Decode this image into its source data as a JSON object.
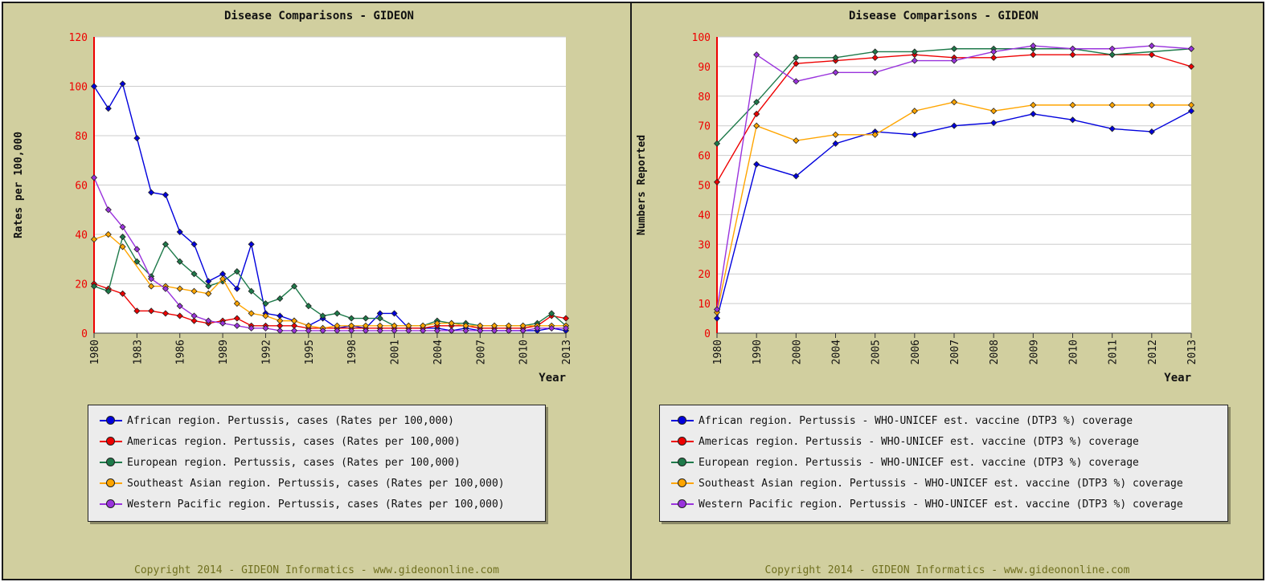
{
  "chart_data": [
    {
      "type": "line",
      "title": "Disease Comparisons - GIDEON",
      "xlabel": "Year",
      "ylabel": "Rates per 100,000",
      "ylim": [
        0,
        120
      ],
      "yticks": [
        0,
        20,
        40,
        60,
        80,
        100,
        120
      ],
      "x": [
        1980,
        1981,
        1982,
        1983,
        1984,
        1985,
        1986,
        1987,
        1988,
        1989,
        1990,
        1991,
        1992,
        1993,
        1994,
        1995,
        1996,
        1997,
        1998,
        1999,
        2000,
        2001,
        2002,
        2003,
        2004,
        2005,
        2006,
        2007,
        2008,
        2009,
        2010,
        2011,
        2012,
        2013
      ],
      "xtick_labels": [
        "1980",
        "1983",
        "1986",
        "1989",
        "1992",
        "1995",
        "1998",
        "2001",
        "2004",
        "2007",
        "2010",
        "2013"
      ],
      "grid": true,
      "legend_position": "bottom",
      "series": [
        {
          "name": "African region. Pertussis, cases (Rates per 100,000)",
          "color": "#0000dd",
          "values": [
            100,
            91,
            101,
            79,
            57,
            56,
            41,
            36,
            21,
            24,
            18,
            36,
            8,
            7,
            5,
            3,
            6,
            2,
            3,
            2,
            8,
            8,
            2,
            2,
            2,
            1,
            2,
            1,
            1,
            1,
            1,
            1,
            2,
            1
          ]
        },
        {
          "name": "Americas region. Pertussis, cases (Rates per 100,000)",
          "color": "#ee0000",
          "values": [
            20,
            18,
            16,
            9,
            9,
            8,
            7,
            5,
            4,
            5,
            6,
            3,
            3,
            3,
            3,
            2,
            2,
            2,
            2,
            2,
            2,
            2,
            2,
            2,
            3,
            3,
            3,
            2,
            2,
            2,
            2,
            3,
            7,
            6
          ]
        },
        {
          "name": "European region. Pertussis, cases (Rates per 100,000)",
          "color": "#1e7a4a",
          "values": [
            19,
            17,
            39,
            29,
            23,
            36,
            29,
            24,
            19,
            21,
            25,
            17,
            12,
            14,
            19,
            11,
            7,
            8,
            6,
            6,
            6,
            3,
            3,
            3,
            5,
            4,
            4,
            3,
            3,
            3,
            3,
            4,
            8,
            3
          ]
        },
        {
          "name": "Southeast Asian region. Pertussis, cases (Rates per 100,000)",
          "color": "#ffa500",
          "values": [
            38,
            40,
            35,
            null,
            19,
            19,
            18,
            17,
            16,
            22,
            12,
            8,
            7,
            5,
            5,
            3,
            2,
            3,
            3,
            3,
            3,
            3,
            3,
            3,
            4,
            4,
            3,
            3,
            3,
            3,
            3,
            3,
            3,
            3
          ]
        },
        {
          "name": "Western Pacific region. Pertussis, cases (Rates per 100,000)",
          "color": "#9a33dd",
          "values": [
            63,
            50,
            43,
            34,
            22,
            18,
            11,
            7,
            5,
            4,
            3,
            2,
            2,
            1,
            1,
            1,
            1,
            1,
            1,
            1,
            1,
            1,
            1,
            1,
            1,
            1,
            1,
            1,
            1,
            1,
            1,
            2,
            2,
            2
          ]
        }
      ]
    },
    {
      "type": "line",
      "title": "Disease Comparisons - GIDEON",
      "xlabel": "Year",
      "ylabel": "Numbers Reported",
      "ylim": [
        0,
        100
      ],
      "yticks": [
        0,
        10,
        20,
        30,
        40,
        50,
        60,
        70,
        80,
        90,
        100
      ],
      "categories": [
        "1980",
        "1990",
        "2000",
        "2004",
        "2005",
        "2006",
        "2007",
        "2008",
        "2009",
        "2010",
        "2011",
        "2012",
        "2013"
      ],
      "grid": true,
      "legend_position": "bottom",
      "series": [
        {
          "name": "African region. Pertussis - WHO-UNICEF est. vaccine (DTP3 %) coverage",
          "color": "#0000dd",
          "values": [
            5,
            57,
            53,
            64,
            68,
            67,
            70,
            71,
            74,
            72,
            69,
            68,
            75
          ]
        },
        {
          "name": "Americas region. Pertussis - WHO-UNICEF est. vaccine (DTP3 %) coverage",
          "color": "#ee0000",
          "values": [
            51,
            74,
            91,
            92,
            93,
            94,
            93,
            93,
            94,
            94,
            94,
            94,
            90
          ]
        },
        {
          "name": "European region. Pertussis - WHO-UNICEF est. vaccine (DTP3 %) coverage",
          "color": "#1e7a4a",
          "values": [
            64,
            78,
            93,
            93,
            95,
            95,
            96,
            96,
            96,
            96,
            94,
            null,
            96
          ]
        },
        {
          "name": "Southeast Asian region. Pertussis - WHO-UNICEF est. vaccine (DTP3 %) coverage",
          "color": "#ffa500",
          "values": [
            7,
            70,
            65,
            67,
            67,
            75,
            78,
            75,
            77,
            77,
            77,
            77,
            77
          ]
        },
        {
          "name": "Western Pacific region. Pertussis - WHO-UNICEF est. vaccine (DTP3 %) coverage",
          "color": "#9a33dd",
          "values": [
            8,
            94,
            85,
            88,
            88,
            92,
            92,
            95,
            97,
            96,
            96,
            97,
            96
          ]
        }
      ]
    }
  ],
  "copyright": "Copyright 2014 - GIDEON Informatics - www.gideononline.com"
}
